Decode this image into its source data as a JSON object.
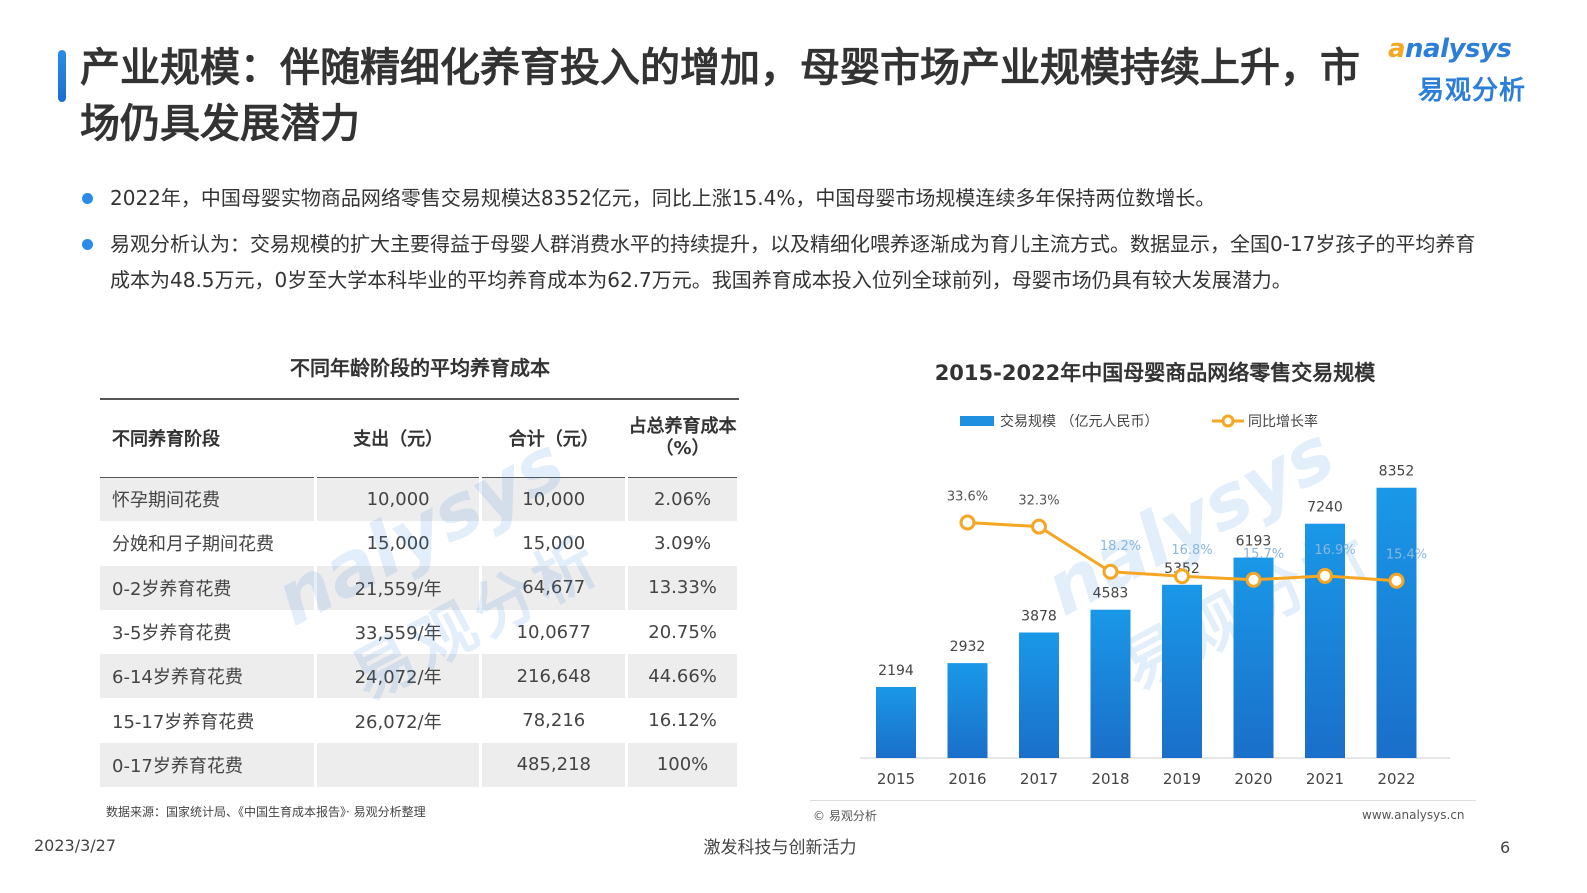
{
  "title": "产业规模：伴随精细化养育投入的增加，母婴市场产业规模持续上升，市场仍具发展潜力",
  "logo": {
    "en_swirl": "a",
    "en": "nalysys",
    "cn": "易观分析"
  },
  "bullets": [
    "2022年，中国母婴实物商品网络零售交易规模达8352亿元，同比上涨15.4%，中国母婴市场规模连续多年保持两位数增长。",
    "易观分析认为：交易规模的扩大主要得益于母婴人群消费水平的持续提升，以及精细化喂养逐渐成为育儿主流方式。数据显示，全国0-17岁孩子的平均养育成本为48.5万元，0岁至大学本科毕业的平均养育成本为62.7万元。我国养育成本投入位列全球前列，母婴市场仍具有较大发展潜力。"
  ],
  "table": {
    "title": "不同年龄阶段的平均养育成本",
    "headers": [
      "不同养育阶段",
      "支出（元）",
      "合计（元）",
      "占总养育成本（%）"
    ],
    "rows": [
      [
        "怀孕期间花费",
        "10,000",
        "10,000",
        "2.06%"
      ],
      [
        "分娩和月子期间花费",
        "15,000",
        "15,000",
        "3.09%"
      ],
      [
        "0-2岁养育花费",
        "21,559/年",
        "64,677",
        "13.33%"
      ],
      [
        "3-5岁养育花费",
        "33,559/年",
        "10,0677",
        "20.75%"
      ],
      [
        "6-14岁养育花费",
        "24,072/年",
        "216,648",
        "44.66%"
      ],
      [
        "15-17岁养育花费",
        "26,072/年",
        "78,216",
        "16.12%"
      ],
      [
        "0-17岁养育花费",
        "",
        "485,218",
        "100%"
      ]
    ],
    "source": "数据来源：国家统计局、《中国生育成本报告》· 易观分析整理"
  },
  "chart_data": {
    "type": "bar",
    "title": "2015-2022年中国母婴商品网络零售交易规模",
    "categories": [
      "2015",
      "2016",
      "2017",
      "2018",
      "2019",
      "2020",
      "2021",
      "2022"
    ],
    "series": [
      {
        "name": "交易规模 （亿元人民币）",
        "type": "bar",
        "values": [
          2194,
          2932,
          3878,
          4583,
          5352,
          6193,
          7240,
          8352
        ],
        "labels": [
          "2194",
          "2932",
          "3878",
          "4583",
          "5352",
          "6193",
          "7240",
          "8352"
        ],
        "color": "#1f8fe0"
      },
      {
        "name": "同比增长率",
        "type": "line",
        "values": [
          null,
          33.6,
          32.3,
          18.2,
          16.8,
          15.7,
          16.9,
          15.4
        ],
        "labels": [
          "",
          "33.6%",
          "32.3%",
          "18.2%",
          "16.8%",
          "15.7%",
          "16.9%",
          "15.4%"
        ],
        "color": "#f5a623"
      }
    ],
    "ylim_bar": [
      0,
      8900
    ],
    "ylim_line": [
      -40,
      50
    ],
    "legend": "top",
    "grid": false,
    "credit": "易观分析",
    "site": "www.analysys.cn"
  },
  "footer": {
    "date": "2023/3/27",
    "slogan": "激发科技与创新活力",
    "page": "6"
  }
}
